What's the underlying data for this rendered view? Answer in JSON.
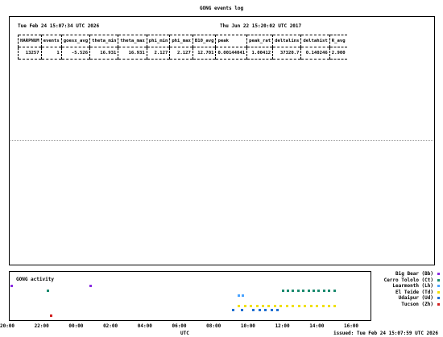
{
  "title": "GONG events log",
  "log": {
    "generated": "Tue Feb 24 15:07:34 UTC 2026",
    "observation": "Thu Jun 22 15:20:02 UTC 2017",
    "headers": [
      "HARPNUM",
      "events",
      "goesx_avg",
      "theta_min",
      "theta_max",
      "phi_min",
      "phi_max",
      "B10_avg",
      "peak",
      "peak_rat",
      "deltalins",
      "deltahist",
      "R_avg"
    ],
    "rows": [
      [
        "13257",
        "1",
        "-5.526",
        "16.931",
        "16.931",
        "2.127",
        "2.127",
        "12.701",
        "0.00144041",
        "1.00412",
        "37320.7",
        "0.140246",
        "2.900"
      ]
    ]
  },
  "activity": {
    "label": "GONG activity",
    "x_ticks": [
      "20:00",
      "22:00",
      "00:00",
      "02:00",
      "04:00",
      "06:00",
      "08:00",
      "10:00",
      "12:00",
      "14:00",
      "16:00"
    ],
    "x_label": "UTC",
    "issued": "issued: Tue Feb 24 15:07:59 UTC 2026",
    "stations": [
      {
        "name": "Big Bear (Bb)",
        "color": "#8a2be2"
      },
      {
        "name": "Cerro Tololo (Ct)",
        "color": "#1a8a6e"
      },
      {
        "name": "Learmonth (Lh)",
        "color": "#4aa3ff"
      },
      {
        "name": "El Teide (Td)",
        "color": "#f0e000"
      },
      {
        "name": "Udaipur (Ud)",
        "color": "#1f6fd1"
      },
      {
        "name": "Tucson (Zh)",
        "color": "#d22020"
      }
    ],
    "observations": [
      {
        "station": 0,
        "hours": [
          20.2,
          24.8
        ]
      },
      {
        "station": 1,
        "hours": [
          22.3,
          11.95,
          12.25,
          12.55,
          12.85,
          13.15,
          13.45,
          13.75,
          14.05,
          14.35,
          14.65,
          14.95
        ]
      },
      {
        "station": 2,
        "hours": [
          9.4,
          9.65
        ]
      },
      {
        "station": 3,
        "hours": [
          9.4,
          9.75,
          10.1,
          10.45,
          10.8,
          11.15,
          11.5,
          11.85,
          12.2,
          12.55,
          12.9,
          13.25,
          13.6,
          13.95,
          14.3,
          14.65,
          14.95
        ]
      },
      {
        "station": 4,
        "hours": [
          9.05,
          9.6,
          10.25,
          10.6,
          10.95,
          11.3,
          11.65
        ]
      },
      {
        "station": 5,
        "hours": [
          22.5
        ]
      }
    ]
  }
}
